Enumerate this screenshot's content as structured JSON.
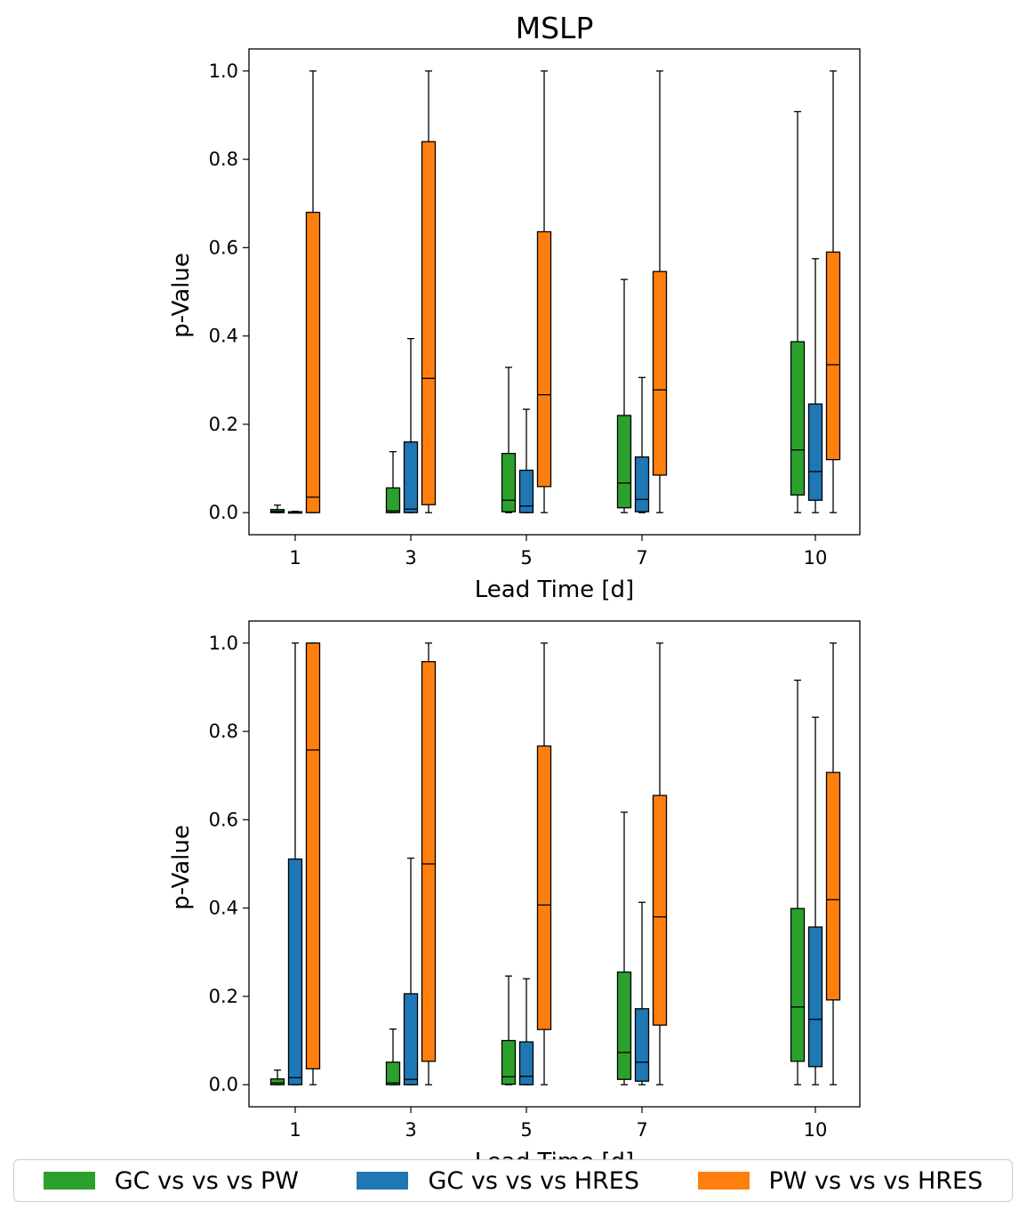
{
  "chart_data": [
    {
      "type": "box",
      "title": "MSLP",
      "xlabel": "Lead Time [d]",
      "ylabel": "p-Value",
      "ylim": [
        -0.05,
        1.05
      ],
      "yticks": [
        "0.0",
        "0.2",
        "0.4",
        "0.6",
        "0.8",
        "1.0"
      ],
      "x": [
        1,
        3,
        5,
        7,
        10
      ],
      "xticks": [
        "1",
        "3",
        "5",
        "7",
        "10"
      ],
      "series": [
        {
          "name": "GC vs vs vs PW",
          "color": "#2ca02c",
          "boxes": [
            {
              "whislo": 0.0,
              "q1": 0.0,
              "med": 0.003,
              "q3": 0.007,
              "whishi": 0.017
            },
            {
              "whislo": 0.0,
              "q1": 0.0,
              "med": 0.004,
              "q3": 0.056,
              "whishi": 0.138
            },
            {
              "whislo": 0.0,
              "q1": 0.002,
              "med": 0.028,
              "q3": 0.134,
              "whishi": 0.329
            },
            {
              "whislo": 0.0,
              "q1": 0.011,
              "med": 0.067,
              "q3": 0.22,
              "whishi": 0.528
            },
            {
              "whislo": 0.0,
              "q1": 0.04,
              "med": 0.142,
              "q3": 0.387,
              "whishi": 0.908
            }
          ]
        },
        {
          "name": "GC vs vs vs HRES",
          "color": "#1f77b4",
          "boxes": [
            {
              "whislo": 0.0,
              "q1": 0.0,
              "med": 0.001,
              "q3": 0.002,
              "whishi": 0.003
            },
            {
              "whislo": 0.0,
              "q1": 0.0,
              "med": 0.008,
              "q3": 0.16,
              "whishi": 0.394
            },
            {
              "whislo": 0.0,
              "q1": 0.0,
              "med": 0.015,
              "q3": 0.096,
              "whishi": 0.234
            },
            {
              "whislo": 0.0,
              "q1": 0.002,
              "med": 0.03,
              "q3": 0.126,
              "whishi": 0.306
            },
            {
              "whislo": 0.0,
              "q1": 0.028,
              "med": 0.093,
              "q3": 0.246,
              "whishi": 0.575
            }
          ]
        },
        {
          "name": "PW vs vs vs HRES",
          "color": "#ff7f0e",
          "boxes": [
            {
              "whislo": 0.0,
              "q1": 0.0,
              "med": 0.035,
              "q3": 0.68,
              "whishi": 1.0
            },
            {
              "whislo": 0.0,
              "q1": 0.018,
              "med": 0.304,
              "q3": 0.84,
              "whishi": 1.0
            },
            {
              "whislo": 0.0,
              "q1": 0.059,
              "med": 0.267,
              "q3": 0.636,
              "whishi": 1.0
            },
            {
              "whislo": 0.0,
              "q1": 0.085,
              "med": 0.278,
              "q3": 0.546,
              "whishi": 1.0
            },
            {
              "whislo": 0.0,
              "q1": 0.12,
              "med": 0.335,
              "q3": 0.59,
              "whishi": 1.0
            }
          ]
        }
      ]
    },
    {
      "type": "box",
      "title": "",
      "xlabel": "Lead Time [d]",
      "ylabel": "p-Value",
      "ylim": [
        -0.05,
        1.05
      ],
      "yticks": [
        "0.0",
        "0.2",
        "0.4",
        "0.6",
        "0.8",
        "1.0"
      ],
      "x": [
        1,
        3,
        5,
        7,
        10
      ],
      "xticks": [
        "1",
        "3",
        "5",
        "7",
        "10"
      ],
      "series": [
        {
          "name": "GC vs vs vs PW",
          "color": "#2ca02c",
          "boxes": [
            {
              "whislo": 0.0,
              "q1": 0.0,
              "med": 0.004,
              "q3": 0.013,
              "whishi": 0.033
            },
            {
              "whislo": 0.0,
              "q1": 0.0,
              "med": 0.004,
              "q3": 0.051,
              "whishi": 0.126
            },
            {
              "whislo": 0.0,
              "q1": 0.001,
              "med": 0.018,
              "q3": 0.1,
              "whishi": 0.246
            },
            {
              "whislo": 0.0,
              "q1": 0.012,
              "med": 0.073,
              "q3": 0.255,
              "whishi": 0.617
            },
            {
              "whislo": 0.0,
              "q1": 0.053,
              "med": 0.176,
              "q3": 0.399,
              "whishi": 0.916
            }
          ]
        },
        {
          "name": "GC vs vs vs HRES",
          "color": "#1f77b4",
          "boxes": [
            {
              "whislo": 0.0,
              "q1": 0.0,
              "med": 0.016,
              "q3": 0.511,
              "whishi": 1.0
            },
            {
              "whislo": 0.0,
              "q1": 0.0,
              "med": 0.012,
              "q3": 0.206,
              "whishi": 0.513
            },
            {
              "whislo": 0.0,
              "q1": 0.0,
              "med": 0.019,
              "q3": 0.097,
              "whishi": 0.24
            },
            {
              "whislo": 0.0,
              "q1": 0.008,
              "med": 0.051,
              "q3": 0.172,
              "whishi": 0.413
            },
            {
              "whislo": 0.0,
              "q1": 0.041,
              "med": 0.148,
              "q3": 0.357,
              "whishi": 0.832
            }
          ]
        },
        {
          "name": "PW vs vs vs HRES",
          "color": "#ff7f0e",
          "boxes": [
            {
              "whislo": 0.0,
              "q1": 0.036,
              "med": 0.758,
              "q3": 1.0,
              "whishi": 1.0
            },
            {
              "whislo": 0.0,
              "q1": 0.053,
              "med": 0.5,
              "q3": 0.958,
              "whishi": 1.0
            },
            {
              "whislo": 0.0,
              "q1": 0.125,
              "med": 0.407,
              "q3": 0.767,
              "whishi": 1.0
            },
            {
              "whislo": 0.0,
              "q1": 0.135,
              "med": 0.38,
              "q3": 0.655,
              "whishi": 1.0
            },
            {
              "whislo": 0.0,
              "q1": 0.192,
              "med": 0.419,
              "q3": 0.707,
              "whishi": 1.0
            }
          ]
        }
      ]
    }
  ],
  "legend": {
    "items": [
      {
        "label": "GC vs vs vs PW",
        "color": "#2ca02c"
      },
      {
        "label": "GC vs vs vs HRES",
        "color": "#1f77b4"
      },
      {
        "label": "PW vs vs vs HRES",
        "color": "#ff7f0e"
      }
    ]
  }
}
